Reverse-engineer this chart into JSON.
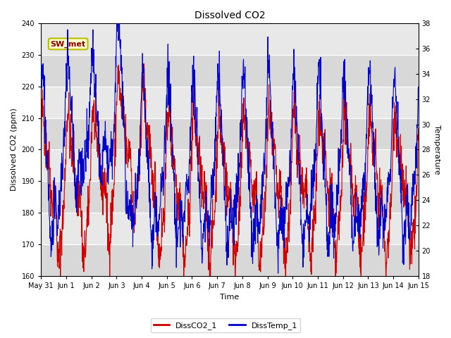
{
  "title": "Dissolved CO2",
  "xlabel": "Time",
  "ylabel_left": "Dissolved CO2 (ppm)",
  "ylabel_right": "Temperature",
  "ylim_left": [
    160,
    240
  ],
  "ylim_right": [
    18,
    38
  ],
  "yticks_left": [
    160,
    170,
    180,
    190,
    200,
    210,
    220,
    230,
    240
  ],
  "yticks_right": [
    18,
    20,
    22,
    24,
    26,
    28,
    30,
    32,
    34,
    36,
    38
  ],
  "fig_bg_color": "#ffffff",
  "plot_bg_color": "#e8e8e8",
  "band_colors": [
    "#d8d8d8",
    "#e8e8e8"
  ],
  "legend_label_co2": "DissCO2_1",
  "legend_label_temp": "DissTemp_1",
  "co2_color": "#cc0000",
  "temp_color": "#0000cc",
  "annotation_text": "SW_met",
  "annotation_bg": "#ffffcc",
  "annotation_border": "#bbbb00",
  "annotation_text_color": "#8b0000",
  "xtick_labels": [
    "May 31",
    "Jun 1",
    "Jun 2",
    "Jun 3",
    "Jun 4",
    "Jun 5",
    "Jun 6",
    "Jun 7",
    "Jun 8",
    "Jun 9",
    "Jun 10",
    "Jun 11",
    "Jun 12",
    "Jun 13",
    "Jun 14",
    "Jun 15"
  ],
  "n_points": 1440,
  "duration_days": 15
}
